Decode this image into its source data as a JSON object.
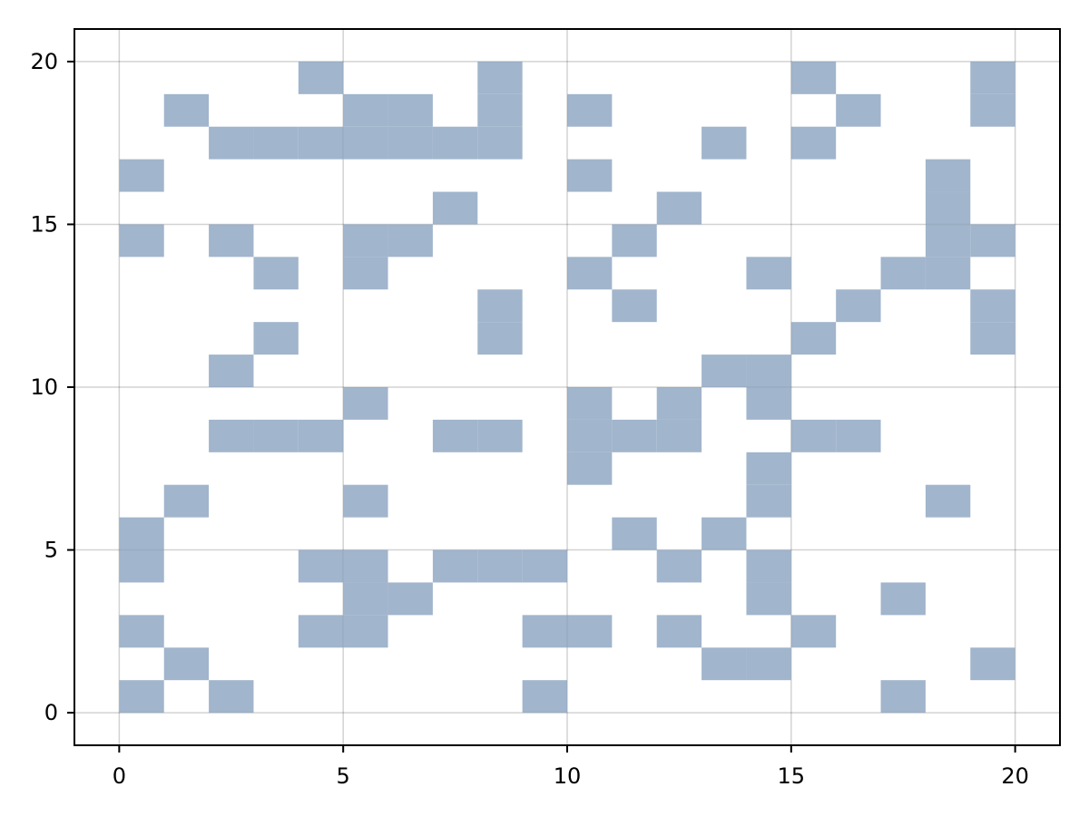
{
  "chart_data": {
    "type": "heatmap",
    "title": "",
    "xlabel": "",
    "ylabel": "",
    "xlim": [
      -1,
      21
    ],
    "ylim": [
      -1,
      21
    ],
    "grid": true,
    "x_ticks": [
      0,
      5,
      10,
      15,
      20
    ],
    "y_ticks": [
      0,
      5,
      10,
      15,
      20
    ],
    "x_tick_labels": [
      "0",
      "5",
      "10",
      "15",
      "20"
    ],
    "y_tick_labels": [
      "0",
      "5",
      "10",
      "15",
      "20"
    ],
    "cell_color": "#a1b5cc",
    "cell_size": 1,
    "filled_cells": [
      [
        0,
        0
      ],
      [
        2,
        0
      ],
      [
        9,
        0
      ],
      [
        17,
        0
      ],
      [
        1,
        1
      ],
      [
        13,
        1
      ],
      [
        14,
        1
      ],
      [
        19,
        1
      ],
      [
        0,
        2
      ],
      [
        4,
        2
      ],
      [
        5,
        2
      ],
      [
        9,
        2
      ],
      [
        10,
        2
      ],
      [
        12,
        2
      ],
      [
        15,
        2
      ],
      [
        5,
        3
      ],
      [
        6,
        3
      ],
      [
        14,
        3
      ],
      [
        17,
        3
      ],
      [
        0,
        4
      ],
      [
        4,
        4
      ],
      [
        5,
        4
      ],
      [
        7,
        4
      ],
      [
        8,
        4
      ],
      [
        9,
        4
      ],
      [
        12,
        4
      ],
      [
        14,
        4
      ],
      [
        0,
        5
      ],
      [
        11,
        5
      ],
      [
        13,
        5
      ],
      [
        1,
        6
      ],
      [
        5,
        6
      ],
      [
        14,
        6
      ],
      [
        18,
        6
      ],
      [
        10,
        7
      ],
      [
        14,
        7
      ],
      [
        2,
        8
      ],
      [
        3,
        8
      ],
      [
        4,
        8
      ],
      [
        7,
        8
      ],
      [
        8,
        8
      ],
      [
        10,
        8
      ],
      [
        11,
        8
      ],
      [
        12,
        8
      ],
      [
        15,
        8
      ],
      [
        16,
        8
      ],
      [
        5,
        9
      ],
      [
        10,
        9
      ],
      [
        12,
        9
      ],
      [
        14,
        9
      ],
      [
        2,
        10
      ],
      [
        13,
        10
      ],
      [
        14,
        10
      ],
      [
        3,
        11
      ],
      [
        8,
        11
      ],
      [
        15,
        11
      ],
      [
        19,
        11
      ],
      [
        8,
        12
      ],
      [
        11,
        12
      ],
      [
        16,
        12
      ],
      [
        19,
        12
      ],
      [
        3,
        13
      ],
      [
        5,
        13
      ],
      [
        10,
        13
      ],
      [
        14,
        13
      ],
      [
        17,
        13
      ],
      [
        18,
        13
      ],
      [
        0,
        14
      ],
      [
        2,
        14
      ],
      [
        5,
        14
      ],
      [
        6,
        14
      ],
      [
        11,
        14
      ],
      [
        18,
        14
      ],
      [
        19,
        14
      ],
      [
        7,
        15
      ],
      [
        12,
        15
      ],
      [
        18,
        15
      ],
      [
        0,
        16
      ],
      [
        10,
        16
      ],
      [
        18,
        16
      ],
      [
        2,
        17
      ],
      [
        3,
        17
      ],
      [
        4,
        17
      ],
      [
        5,
        17
      ],
      [
        6,
        17
      ],
      [
        7,
        17
      ],
      [
        8,
        17
      ],
      [
        13,
        17
      ],
      [
        15,
        17
      ],
      [
        1,
        18
      ],
      [
        5,
        18
      ],
      [
        6,
        18
      ],
      [
        8,
        18
      ],
      [
        10,
        18
      ],
      [
        16,
        18
      ],
      [
        19,
        18
      ],
      [
        4,
        19
      ],
      [
        8,
        19
      ],
      [
        15,
        19
      ],
      [
        19,
        19
      ]
    ]
  }
}
